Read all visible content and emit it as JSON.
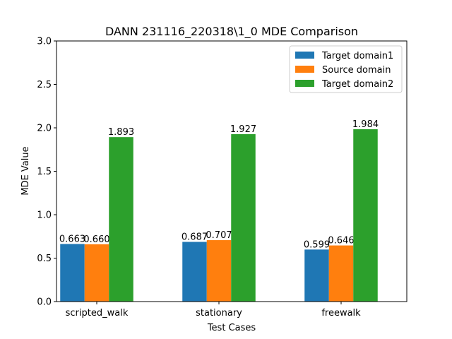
{
  "chart_data": {
    "type": "bar",
    "title": "DANN 231116_220318\\1_0 MDE Comparison",
    "xlabel": "Test Cases",
    "ylabel": "MDE Value",
    "categories": [
      "scripted_walk",
      "stationary",
      "freewalk"
    ],
    "series": [
      {
        "name": "Target domain1",
        "color": "#1f77b4",
        "values": [
          0.663,
          0.687,
          0.599
        ],
        "labels": [
          "0.663",
          "0.687",
          "0.599"
        ]
      },
      {
        "name": "Source domain",
        "color": "#ff7f0e",
        "values": [
          0.66,
          0.707,
          0.646
        ],
        "labels": [
          "0.660",
          "0.707",
          "0.646"
        ]
      },
      {
        "name": "Target domain2",
        "color": "#2ca02c",
        "values": [
          1.893,
          1.927,
          1.984
        ],
        "labels": [
          "1.893",
          "1.927",
          "1.984"
        ]
      }
    ],
    "ylim": [
      0,
      3.0
    ],
    "yticks": [
      "0.0",
      "0.5",
      "1.0",
      "1.5",
      "2.0",
      "2.5",
      "3.0"
    ],
    "legend_position": "top-right",
    "grid": false
  }
}
